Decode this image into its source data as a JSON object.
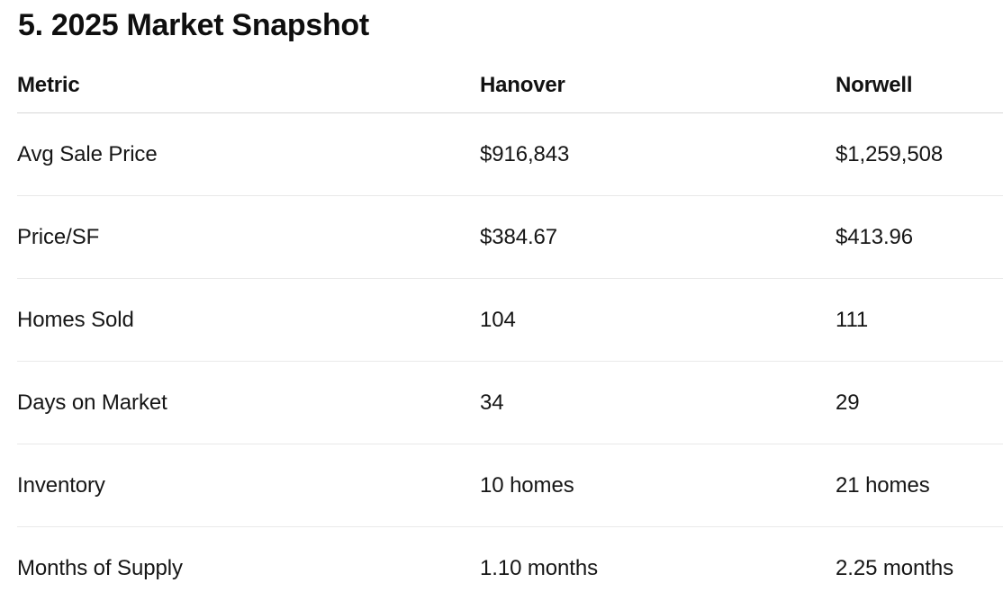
{
  "page": {
    "title": "5. 2025 Market Snapshot"
  },
  "table": {
    "columns": [
      "Metric",
      "Hanover",
      "Norwell"
    ],
    "rows": [
      {
        "metric": "Avg Sale Price",
        "hanover": "$916,843",
        "norwell": "$1,259,508"
      },
      {
        "metric": "Price/SF",
        "hanover": "$384.67",
        "norwell": "$413.96"
      },
      {
        "metric": "Homes Sold",
        "hanover": "104",
        "norwell": "111"
      },
      {
        "metric": "Days on Market",
        "hanover": "34",
        "norwell": "29"
      },
      {
        "metric": "Inventory",
        "hanover": "10 homes",
        "norwell": "21 homes"
      },
      {
        "metric": "Months of Supply",
        "hanover": "1.10 months",
        "norwell": "2.25 months"
      }
    ]
  },
  "chart_data": {
    "type": "table",
    "title": "5. 2025 Market Snapshot",
    "categories": [
      "Avg Sale Price",
      "Price/SF",
      "Homes Sold",
      "Days on Market",
      "Inventory",
      "Months of Supply"
    ],
    "series": [
      {
        "name": "Hanover",
        "values": [
          "$916,843",
          "$384.67",
          "104",
          "34",
          "10 homes",
          "1.10 months"
        ]
      },
      {
        "name": "Norwell",
        "values": [
          "$1,259,508",
          "$413.96",
          "111",
          "29",
          "21 homes",
          "2.25 months"
        ]
      }
    ]
  },
  "colors": {
    "background": "#ffffff",
    "text": "#141414",
    "header_rule": "#d7d7d7",
    "row_rule": "#e9e9e9"
  }
}
